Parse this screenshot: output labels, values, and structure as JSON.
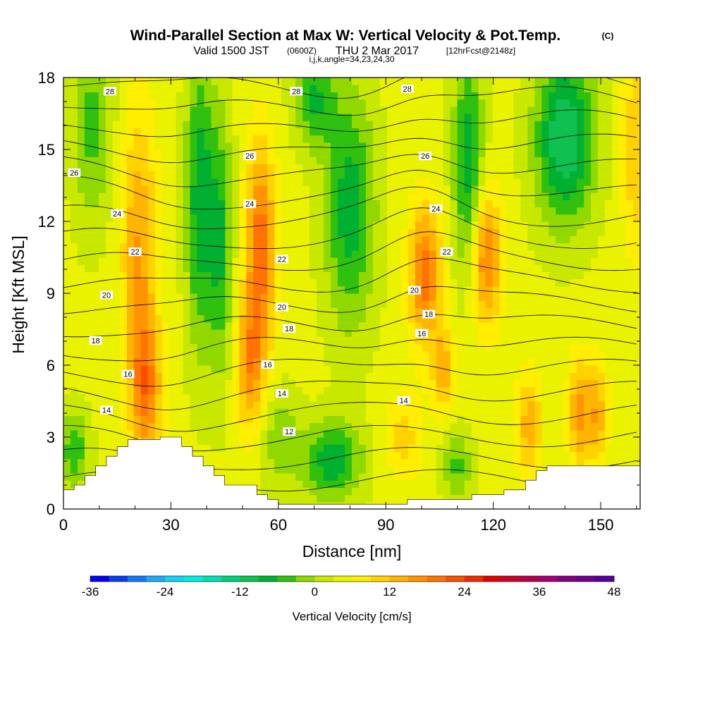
{
  "header": {
    "title": "Wind-Parallel Section at Max W: Vertical Velocity & Pot.Temp.",
    "title_unit": "(C)",
    "valid_prefix": "Valid 1500 JST",
    "valid_z": "(0600Z)",
    "valid_date": "THU 2 Mar 2017",
    "valid_fcst": "[12hrFcst@2148z]",
    "indices": "i,j,k,angle=34,23,24,30"
  },
  "chart_data": {
    "type": "heatmap",
    "xlabel": "Distance [nm]",
    "ylabel": "Height [Kft MSL]",
    "xlim": [
      0,
      161
    ],
    "ylim": [
      0,
      18
    ],
    "x_ticks": [
      "0",
      "30",
      "60",
      "90",
      "120",
      "150"
    ],
    "y_ticks": [
      "0",
      "3",
      "6",
      "9",
      "12",
      "15",
      "18"
    ],
    "colorbar": {
      "label": "Vertical Velocity [cm/s]",
      "tick_labels": [
        "-36",
        "-24",
        "-12",
        "0",
        "12",
        "24",
        "36",
        "48"
      ],
      "levels": [
        -36,
        -33,
        -30,
        -27,
        -24,
        -21,
        -18,
        -15,
        -12,
        -9,
        -6,
        -3,
        0,
        3,
        6,
        9,
        12,
        15,
        18,
        21,
        24,
        27,
        30,
        33,
        36,
        39,
        42,
        45,
        48
      ],
      "colors": [
        "#0000ee",
        "#0a3cf0",
        "#1478f5",
        "#1eaaf5",
        "#14d2f0",
        "#00eedd",
        "#00e0b0",
        "#00d07e",
        "#10c050",
        "#00b030",
        "#30c010",
        "#90d800",
        "#c8e800",
        "#eaf200",
        "#ffee00",
        "#ffd200",
        "#ffb400",
        "#ff9400",
        "#ff7300",
        "#f85000",
        "#ee2a00",
        "#e00000",
        "#c8002a",
        "#b4004c",
        "#a00070",
        "#800080",
        "#6a0090",
        "#52009a"
      ]
    },
    "contour_labels": [
      {
        "x": 13,
        "y": 17.4,
        "text": "28"
      },
      {
        "x": 65,
        "y": 17.4,
        "text": "28"
      },
      {
        "x": 96,
        "y": 17.5,
        "text": "28"
      },
      {
        "x": 3,
        "y": 14.0,
        "text": "26"
      },
      {
        "x": 52,
        "y": 14.7,
        "text": "26"
      },
      {
        "x": 101,
        "y": 14.7,
        "text": "26"
      },
      {
        "x": 15,
        "y": 12.3,
        "text": "24"
      },
      {
        "x": 52,
        "y": 12.7,
        "text": "24"
      },
      {
        "x": 104,
        "y": 12.5,
        "text": "24"
      },
      {
        "x": 20,
        "y": 10.7,
        "text": "22"
      },
      {
        "x": 61,
        "y": 10.4,
        "text": "22"
      },
      {
        "x": 107,
        "y": 10.7,
        "text": "22"
      },
      {
        "x": 12,
        "y": 8.9,
        "text": "20"
      },
      {
        "x": 61,
        "y": 8.4,
        "text": "20"
      },
      {
        "x": 98,
        "y": 9.1,
        "text": "20"
      },
      {
        "x": 9,
        "y": 7.0,
        "text": "18"
      },
      {
        "x": 63,
        "y": 7.5,
        "text": "18"
      },
      {
        "x": 102,
        "y": 8.1,
        "text": "18"
      },
      {
        "x": 18,
        "y": 5.6,
        "text": "16"
      },
      {
        "x": 57,
        "y": 6.0,
        "text": "16"
      },
      {
        "x": 100,
        "y": 7.3,
        "text": "16"
      },
      {
        "x": 12,
        "y": 4.1,
        "text": "14"
      },
      {
        "x": 61,
        "y": 4.8,
        "text": "14"
      },
      {
        "x": 95,
        "y": 4.5,
        "text": "14"
      },
      {
        "x": 63,
        "y": 3.2,
        "text": "12"
      }
    ]
  }
}
